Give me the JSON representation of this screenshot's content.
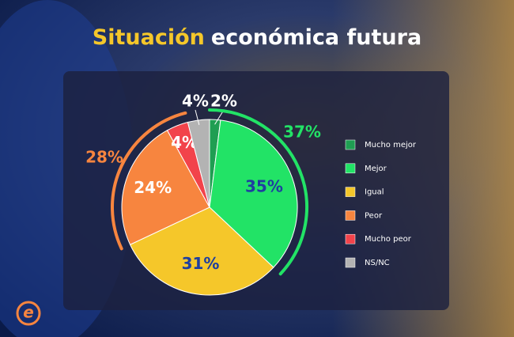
{
  "chart_data": {
    "type": "pie",
    "title": [
      "Situación",
      "económica futura"
    ],
    "categories": [
      "Mucho mejor",
      "Mejor",
      "Igual",
      "Peor",
      "Mucho peor",
      "NS/NC"
    ],
    "values": [
      2,
      35,
      31,
      24,
      4,
      4
    ],
    "value_labels": [
      "2%",
      "35%",
      "31%",
      "24%",
      "4%",
      "4%"
    ],
    "colors": [
      "#1f9e52",
      "#22e366",
      "#f5c72a",
      "#f7853f",
      "#f2434b",
      "#b3b3b3"
    ],
    "annotations": [
      {
        "value": 37,
        "label": "37%",
        "color": "#22e366"
      },
      {
        "value": 28,
        "label": "28%",
        "color": "#f7853f"
      }
    ]
  }
}
